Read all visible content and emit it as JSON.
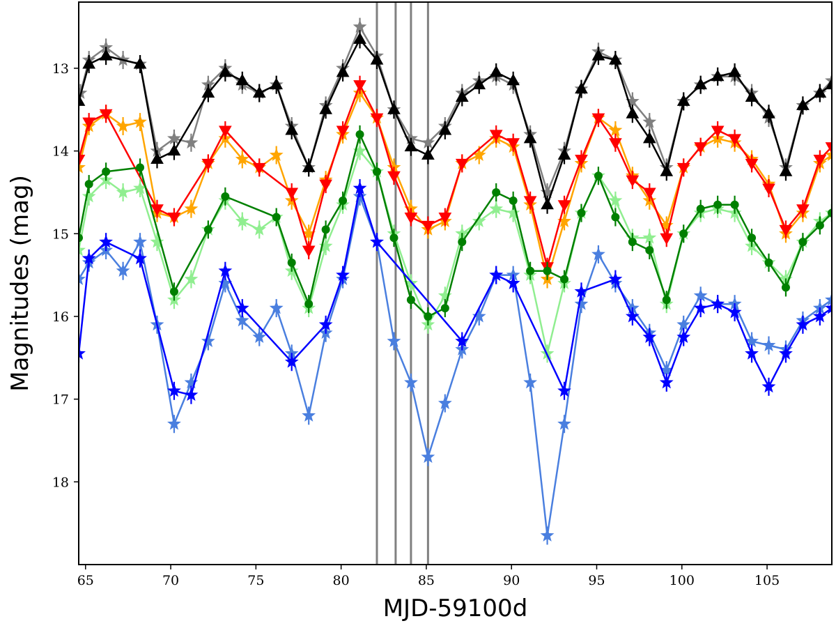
{
  "chart_data": {
    "type": "line",
    "xlabel": "MJD-59100d",
    "ylabel": "Magnitudes (mag)",
    "xlim": [
      64.6,
      108.8
    ],
    "ylim": [
      19.0,
      12.2
    ],
    "y_inverted": true,
    "grid": false,
    "legend": "none",
    "x_ticks": [
      "65",
      "70",
      "75",
      "80",
      "85",
      "90",
      "95",
      "100",
      "105"
    ],
    "x_tick_values": [
      65,
      70,
      75,
      80,
      85,
      90,
      95,
      100,
      105
    ],
    "y_ticks": [
      "13",
      "14",
      "15",
      "16",
      "17",
      "18"
    ],
    "y_tick_values": [
      13,
      14,
      15,
      16,
      17,
      18
    ],
    "vlines": [
      82.1,
      83.2,
      84.1,
      85.1
    ],
    "vline_color": "#808080",
    "series": [
      {
        "color": "#808080",
        "marker": "star",
        "x": [
          64.7,
          65.2,
          66.2,
          67.2,
          68.2,
          69.2,
          70.2,
          71.2,
          72.2,
          73.2,
          74.2,
          75.2,
          76.2,
          77.1,
          78.1,
          79.1,
          80.1,
          81.1,
          82.1,
          83.1,
          84.1,
          85.1,
          86.1,
          87.1,
          88.1,
          89.1,
          90.1,
          91.1,
          92.1,
          93.1,
          94.1,
          95.1,
          96.1,
          97.1,
          98.1,
          99.1,
          100.1,
          101.1,
          102.1,
          103.1,
          104.1,
          105.1,
          106.1,
          107.1,
          108.1,
          108.8
        ],
        "y": [
          13.3,
          12.9,
          12.75,
          12.9,
          12.95,
          14.0,
          13.85,
          13.9,
          13.2,
          13.0,
          13.2,
          13.3,
          13.2,
          13.7,
          14.2,
          13.45,
          13.0,
          12.5,
          12.85,
          13.5,
          13.85,
          13.9,
          13.7,
          13.3,
          13.15,
          13.1,
          13.2,
          13.8,
          14.5,
          14.0,
          13.25,
          12.8,
          12.9,
          13.4,
          13.65,
          14.2,
          13.4,
          13.2,
          13.1,
          13.1,
          13.3,
          13.6,
          14.2,
          13.45,
          13.3,
          13.15
        ]
      },
      {
        "color": "#000000",
        "marker": "triangle-up",
        "x": [
          64.6,
          65.2,
          66.2,
          68.2,
          69.2,
          70.2,
          72.2,
          73.2,
          74.2,
          75.2,
          76.2,
          77.1,
          78.1,
          79.1,
          80.1,
          81.1,
          82.1,
          83.1,
          84.1,
          85.1,
          86.1,
          87.1,
          88.1,
          89.1,
          90.1,
          91.1,
          92.1,
          93.1,
          94.1,
          95.1,
          96.1,
          97.1,
          98.1,
          99.1,
          100.1,
          101.1,
          102.1,
          103.1,
          104.1,
          105.1,
          106.1,
          107.1,
          108.1,
          108.8
        ],
        "y": [
          13.4,
          12.95,
          12.85,
          12.95,
          14.1,
          14.0,
          13.3,
          13.05,
          13.15,
          13.3,
          13.2,
          13.75,
          14.2,
          13.5,
          13.05,
          12.65,
          12.9,
          13.5,
          13.95,
          14.05,
          13.75,
          13.35,
          13.2,
          13.05,
          13.15,
          13.85,
          14.65,
          14.05,
          13.25,
          12.85,
          12.9,
          13.55,
          13.85,
          14.25,
          13.4,
          13.2,
          13.1,
          13.05,
          13.35,
          13.55,
          14.25,
          13.45,
          13.3,
          13.2
        ]
      },
      {
        "color": "#ffa500",
        "marker": "star",
        "x": [
          64.6,
          65.2,
          66.2,
          67.2,
          68.2,
          69.2,
          70.2,
          71.2,
          72.2,
          73.2,
          74.2,
          75.2,
          76.2,
          77.1,
          78.1,
          79.1,
          80.1,
          81.1,
          82.1,
          83.1,
          84.1,
          85.1,
          86.1,
          87.1,
          88.1,
          89.1,
          90.1,
          91.1,
          92.1,
          93.1,
          94.1,
          95.1,
          96.1,
          97.1,
          98.1,
          99.1,
          100.1,
          101.1,
          102.1,
          103.1,
          104.1,
          105.1,
          106.1,
          107.1,
          108.1,
          108.8
        ],
        "y": [
          14.2,
          13.7,
          13.55,
          13.7,
          13.65,
          14.75,
          14.8,
          14.7,
          14.15,
          13.85,
          14.1,
          14.2,
          14.05,
          14.6,
          15.0,
          14.35,
          13.8,
          13.3,
          13.6,
          14.2,
          14.7,
          14.95,
          14.85,
          14.15,
          14.05,
          13.85,
          13.95,
          14.65,
          15.55,
          14.85,
          14.15,
          13.6,
          13.75,
          14.3,
          14.6,
          14.9,
          14.2,
          13.95,
          13.85,
          13.9,
          14.1,
          14.4,
          15.0,
          14.75,
          14.15,
          14.05
        ]
      },
      {
        "color": "#ff0000",
        "marker": "triangle-down",
        "x": [
          64.6,
          65.2,
          66.2,
          69.2,
          70.2,
          72.2,
          73.2,
          75.2,
          77.1,
          78.1,
          79.1,
          80.1,
          81.1,
          82.1,
          83.1,
          84.1,
          85.1,
          86.1,
          87.1,
          89.1,
          90.1,
          91.1,
          92.1,
          93.1,
          94.1,
          95.1,
          96.1,
          97.1,
          98.1,
          99.1,
          100.1,
          101.1,
          102.1,
          103.1,
          104.1,
          105.1,
          106.1,
          107.1,
          108.1,
          108.8
        ],
        "y": [
          14.1,
          13.65,
          13.55,
          14.7,
          14.8,
          14.15,
          13.75,
          14.2,
          14.5,
          15.2,
          14.4,
          13.75,
          13.2,
          13.6,
          14.3,
          14.8,
          14.9,
          14.8,
          14.15,
          13.8,
          13.9,
          14.6,
          15.4,
          14.65,
          14.1,
          13.6,
          13.9,
          14.35,
          14.5,
          15.05,
          14.2,
          13.95,
          13.75,
          13.85,
          14.15,
          14.45,
          14.95,
          14.7,
          14.1,
          13.95
        ]
      },
      {
        "color": "#90ee90",
        "marker": "star",
        "x": [
          64.6,
          65.2,
          66.2,
          67.2,
          68.2,
          69.2,
          70.2,
          71.2,
          72.2,
          73.2,
          74.2,
          75.2,
          76.2,
          77.1,
          78.1,
          79.1,
          80.1,
          81.1,
          82.1,
          83.1,
          84.1,
          85.1,
          86.1,
          87.1,
          88.1,
          89.1,
          90.1,
          91.1,
          92.1,
          93.1,
          94.1,
          95.1,
          96.1,
          97.1,
          98.1,
          99.1,
          100.1,
          101.1,
          102.1,
          103.1,
          104.1,
          105.1,
          106.1,
          107.1,
          108.1,
          108.8
        ],
        "y": [
          15.2,
          14.55,
          14.35,
          14.5,
          14.45,
          15.1,
          15.8,
          15.55,
          14.95,
          14.6,
          14.85,
          14.95,
          14.8,
          15.45,
          15.9,
          15.15,
          14.65,
          14.0,
          14.25,
          15.0,
          15.6,
          16.1,
          15.75,
          15.0,
          14.85,
          14.7,
          14.75,
          15.5,
          16.45,
          15.6,
          14.75,
          14.3,
          14.6,
          15.05,
          15.05,
          15.85,
          15.0,
          14.75,
          14.7,
          14.75,
          15.15,
          15.35,
          15.55,
          15.1,
          14.85,
          14.75
        ]
      },
      {
        "color": "#008000",
        "marker": "circle",
        "x": [
          64.6,
          65.2,
          66.2,
          68.2,
          70.2,
          72.2,
          73.2,
          76.2,
          77.1,
          78.1,
          79.1,
          80.1,
          81.1,
          82.1,
          83.1,
          84.1,
          85.1,
          86.1,
          87.1,
          89.1,
          90.1,
          91.1,
          92.1,
          93.1,
          94.1,
          95.1,
          96.1,
          97.1,
          98.1,
          99.1,
          100.1,
          101.1,
          102.1,
          103.1,
          104.1,
          105.1,
          106.1,
          107.1,
          108.1,
          108.8
        ],
        "y": [
          15.05,
          14.4,
          14.25,
          14.2,
          15.7,
          14.95,
          14.55,
          14.8,
          15.35,
          15.85,
          14.95,
          14.6,
          13.8,
          14.25,
          15.05,
          15.8,
          16.0,
          15.9,
          15.1,
          14.5,
          14.6,
          15.45,
          15.45,
          15.55,
          14.75,
          14.3,
          14.8,
          15.1,
          15.2,
          15.8,
          15.0,
          14.7,
          14.65,
          14.65,
          15.05,
          15.35,
          15.65,
          15.1,
          14.9,
          14.75
        ]
      },
      {
        "color": "#4a7fdf",
        "marker": "star",
        "x": [
          64.6,
          65.2,
          66.2,
          67.2,
          68.2,
          69.2,
          70.2,
          71.2,
          72.2,
          73.2,
          74.2,
          75.2,
          76.2,
          77.1,
          78.1,
          79.1,
          80.1,
          81.1,
          82.1,
          83.1,
          84.1,
          85.1,
          86.1,
          87.1,
          88.1,
          89.1,
          90.1,
          91.1,
          92.1,
          93.1,
          94.1,
          95.1,
          96.1,
          97.1,
          98.1,
          99.1,
          100.1,
          101.1,
          102.1,
          103.1,
          104.1,
          105.1,
          106.1,
          107.1,
          108.1,
          108.8
        ],
        "y": [
          15.55,
          15.35,
          15.2,
          15.45,
          15.1,
          16.1,
          17.3,
          16.8,
          16.3,
          15.6,
          16.05,
          16.25,
          15.9,
          16.45,
          17.2,
          16.2,
          15.55,
          14.55,
          15.1,
          16.3,
          16.8,
          17.7,
          17.05,
          16.4,
          16.0,
          15.5,
          15.5,
          16.8,
          18.65,
          17.3,
          15.85,
          15.25,
          15.6,
          15.9,
          16.2,
          16.65,
          16.1,
          15.75,
          15.85,
          15.85,
          16.3,
          16.35,
          16.4,
          16.05,
          15.9,
          15.8
        ]
      },
      {
        "color": "#0000ff",
        "marker": "star",
        "x": [
          64.6,
          65.2,
          66.2,
          68.2,
          70.2,
          71.2,
          73.2,
          74.2,
          77.1,
          79.1,
          80.1,
          81.1,
          82.1,
          87.1,
          89.1,
          90.1,
          93.1,
          94.1,
          96.1,
          97.1,
          98.1,
          99.1,
          100.1,
          101.1,
          102.1,
          103.1,
          104.1,
          105.1,
          106.1,
          107.1,
          108.1,
          108.8
        ],
        "y": [
          16.45,
          15.3,
          15.1,
          15.3,
          16.9,
          16.95,
          15.45,
          15.9,
          16.55,
          16.1,
          15.5,
          14.45,
          15.1,
          16.3,
          15.5,
          15.6,
          16.9,
          15.7,
          15.55,
          16.0,
          16.25,
          16.8,
          16.25,
          15.9,
          15.85,
          15.95,
          16.45,
          16.85,
          16.45,
          16.1,
          16.0,
          15.9
        ]
      }
    ]
  }
}
